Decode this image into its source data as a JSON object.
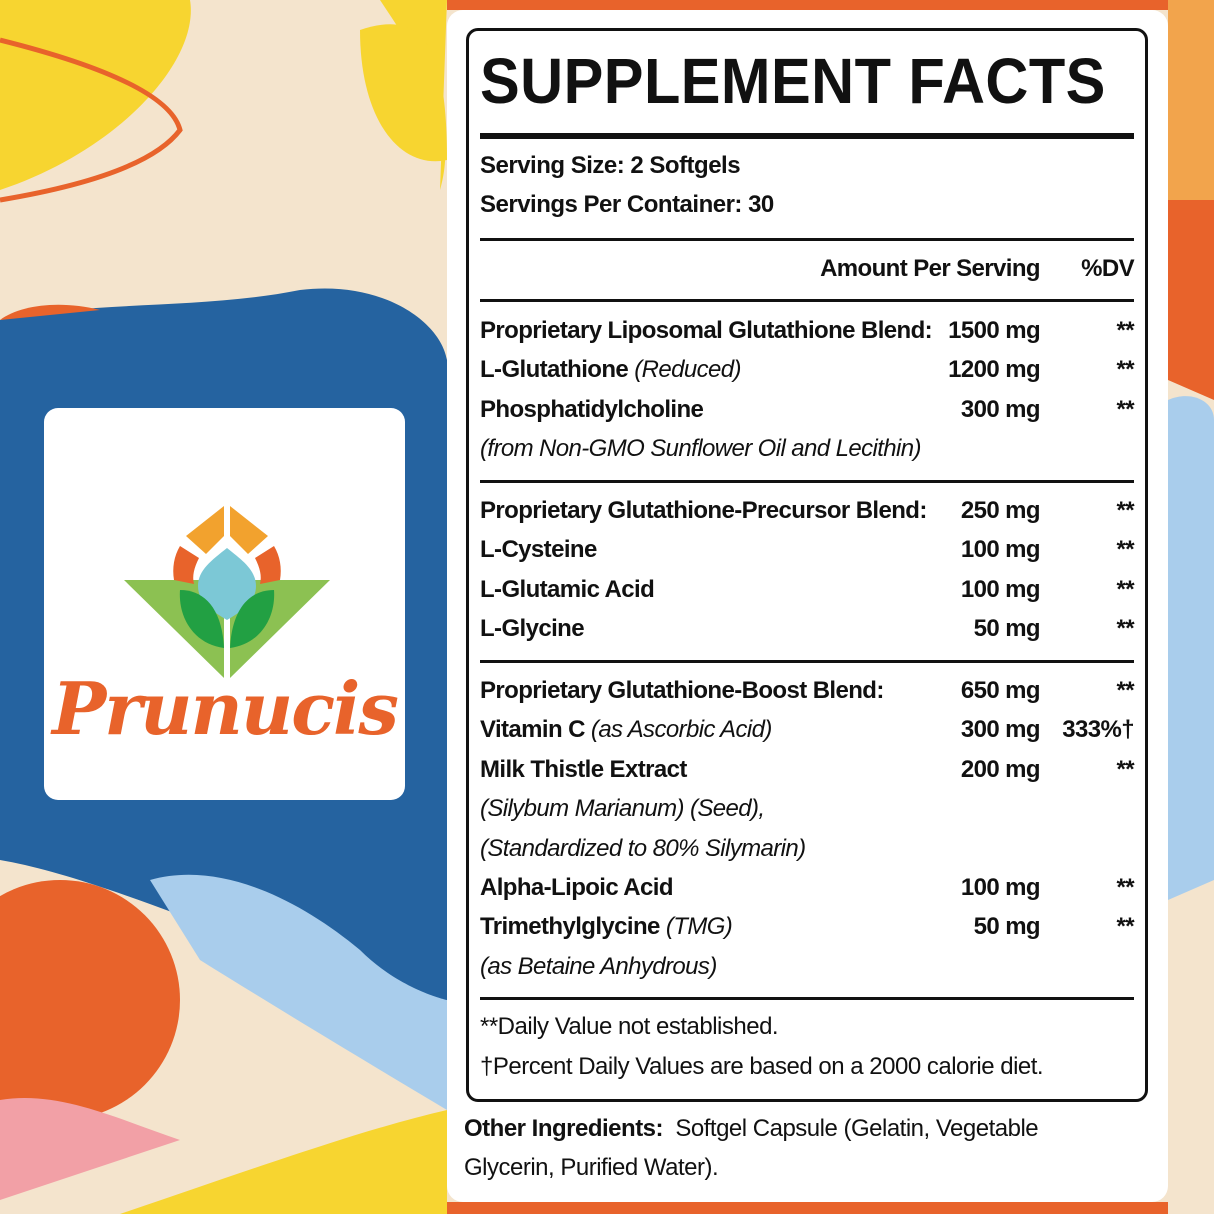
{
  "brand": {
    "name": "Prunucis",
    "colors": {
      "orange": "#e8632b",
      "amber": "#f2a22e",
      "sky": "#7cc8d6",
      "green": "#22a043",
      "lime": "#8cc152",
      "blue": "#2563a0"
    }
  },
  "facts": {
    "title": "SUPPLEMENT FACTS",
    "serving_size": "Serving Size: 2 Softgels",
    "servings_per_container": "Servings Per Container: 30",
    "header": {
      "amount": "Amount Per Serving",
      "dv": "%DV"
    },
    "rows": [
      {
        "name": "Proprietary Liposomal Glutathione Blend:",
        "amount": "1500 mg",
        "dv": "**"
      },
      {
        "name": "L-Glutathione ",
        "qualifier": "(Reduced)",
        "amount": "1200 mg",
        "dv": "**"
      },
      {
        "name": "Phosphatidylcholine",
        "amount": "300 mg",
        "dv": "**"
      },
      {
        "sub": "(from Non-GMO Sunflower Oil and Lecithin)"
      },
      {
        "name": "Proprietary Glutathione-Precursor Blend:",
        "amount": "250 mg",
        "dv": "**"
      },
      {
        "name": "L-Cysteine",
        "amount": "100 mg",
        "dv": "**"
      },
      {
        "name": "L-Glutamic Acid",
        "amount": "100 mg",
        "dv": "**"
      },
      {
        "name": "L-Glycine",
        "amount": "50 mg",
        "dv": "**"
      },
      {
        "name": "Proprietary Glutathione-Boost Blend:",
        "amount": "650 mg",
        "dv": "**"
      },
      {
        "name": "Vitamin C ",
        "qualifier": "(as Ascorbic Acid)",
        "amount": "300 mg",
        "dv": "333%†"
      },
      {
        "name": "Milk Thistle Extract",
        "amount": "200 mg",
        "dv": "**"
      },
      {
        "sub": "(Silybum Marianum) (Seed),"
      },
      {
        "sub": "(Standardized to 80% Silymarin)"
      },
      {
        "name": "Alpha-Lipoic Acid",
        "amount": "100 mg",
        "dv": "**"
      },
      {
        "name": "Trimethylglycine ",
        "qualifier": "(TMG)",
        "amount": "50 mg",
        "dv": "**"
      },
      {
        "sub": "(as Betaine Anhydrous)"
      }
    ],
    "footnote_1": "**Daily Value not established.",
    "footnote_2": "†Percent Daily Values are based on a 2000 calorie diet."
  },
  "other_ingredients": {
    "label": "Other Ingredients:",
    "line_1": "Softgel Capsule (Gelatin, Vegetable",
    "line_2": "Glycerin, Purified Water)."
  }
}
